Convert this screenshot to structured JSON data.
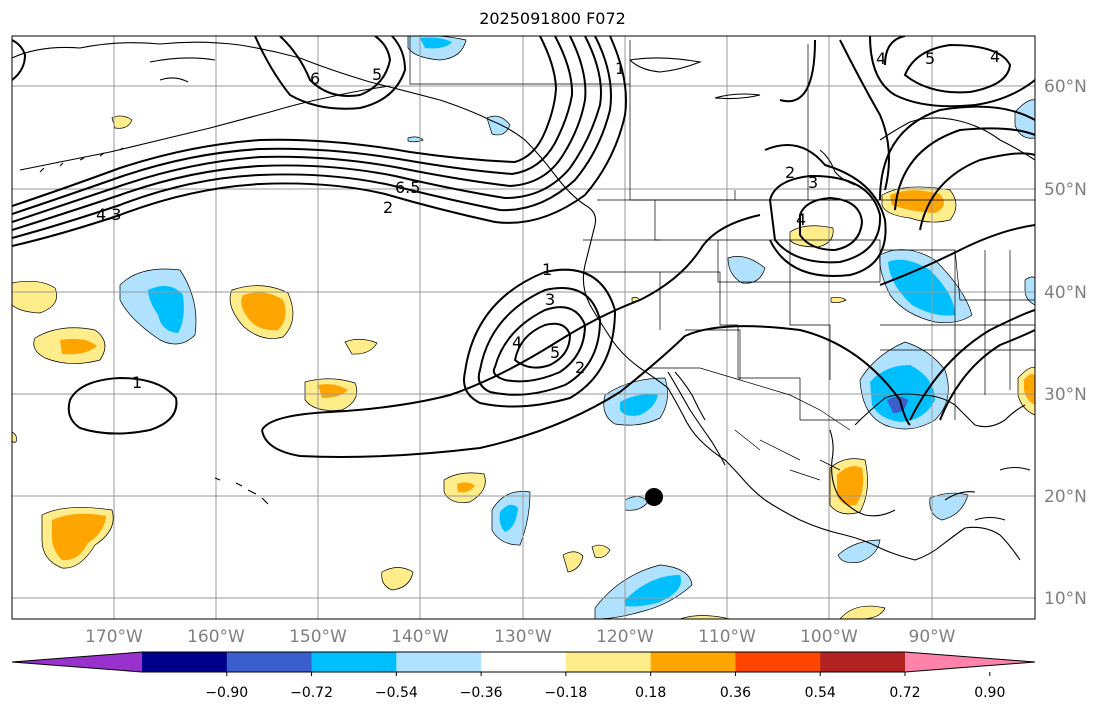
{
  "title": "2025091800 F072",
  "map": {
    "lat_labels": [
      "60°N",
      "50°N",
      "40°N",
      "30°N",
      "20°N",
      "10°N"
    ],
    "lon_labels": [
      "170°W",
      "160°W",
      "150°W",
      "140°W",
      "130°W",
      "120°W",
      "110°W",
      "100°W",
      "90°W"
    ],
    "contour_labels": [
      "6",
      "5",
      "4",
      "4.3",
      "6.5",
      "2",
      "1",
      "3",
      "4",
      "5",
      "2",
      "1",
      "2",
      "3",
      "4",
      "1",
      "4",
      "5"
    ]
  },
  "colorbar": {
    "colors": [
      "#9932cc",
      "#00008b",
      "#3a5fcd",
      "#00bfff",
      "#b0e2ff",
      "#ffffff",
      "#ffec8b",
      "#ffa500",
      "#ff4500",
      "#b22222",
      "#ff82ab"
    ],
    "labels": [
      "−0.90",
      "−0.72",
      "−0.54",
      "−0.36",
      "−0.18",
      "0.18",
      "0.36",
      "0.54",
      "0.72",
      "0.90"
    ]
  },
  "style": {
    "positive_light": "#ffec8b",
    "positive_mid": "#ffa500",
    "negative_light": "#b0e2ff",
    "negative_mid": "#00bfff",
    "negative_dark": "#3a5fcd",
    "grid": "#999999"
  }
}
